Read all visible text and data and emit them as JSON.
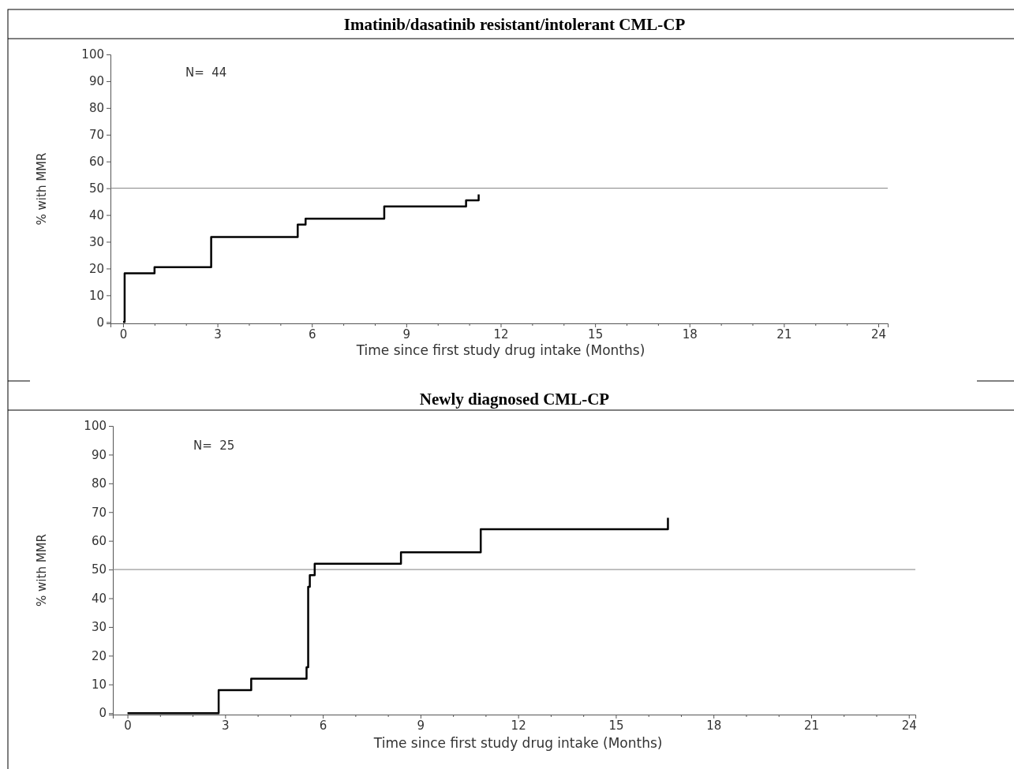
{
  "chart_data": [
    {
      "type": "step",
      "title": "Imatinib/dasatinib resistant/intolerant CML-CP",
      "xlabel": "Time since first study drug intake (Months)",
      "ylabel": "% with MMR",
      "annotations": [
        "N=  44"
      ],
      "series": [
        {
          "color": "#000000",
          "x": [
            0,
            0.05,
            1,
            2.8,
            5.55,
            5.8,
            8.3,
            10.9,
            11.3
          ],
          "values": [
            0,
            18.2,
            20.5,
            31.8,
            36.4,
            38.6,
            43.2,
            45.5,
            47.7
          ]
        }
      ],
      "xlim": [
        -0.4,
        24.3
      ],
      "ylim": [
        -0.5,
        100
      ],
      "xticks": [
        0,
        {
          "value": 1,
          "label": null
        },
        {
          "value": 2,
          "label": null
        },
        3,
        {
          "value": 4,
          "label": null
        },
        {
          "value": 5,
          "label": null
        },
        6,
        {
          "value": 7,
          "label": null
        },
        {
          "value": 8,
          "label": null
        },
        9,
        {
          "value": 10,
          "label": null
        },
        {
          "value": 11,
          "label": null
        },
        12,
        {
          "value": 13,
          "label": null
        },
        {
          "value": 14,
          "label": null
        },
        15,
        {
          "value": 16,
          "label": null
        },
        {
          "value": 17,
          "label": null
        },
        18,
        {
          "value": 19,
          "label": null
        },
        {
          "value": 20,
          "label": null
        },
        21,
        {
          "value": 22,
          "label": null
        },
        {
          "value": 23,
          "label": null
        },
        24
      ],
      "yticks": [
        0,
        10,
        20,
        30,
        40,
        50,
        60,
        70,
        80,
        90,
        100
      ],
      "ref_lines": [
        {
          "axis": "y",
          "value": 50,
          "color": "#808080"
        }
      ],
      "grid": false,
      "marker": "none",
      "line_style": "solid"
    },
    {
      "type": "step",
      "title": "Newly diagnosed CML-CP",
      "xlabel": "Time since first study drug intake (Months)",
      "ylabel": "% with MMR",
      "annotations": [
        "N=  25"
      ],
      "series": [
        {
          "color": "#000000",
          "x": [
            0,
            2.8,
            3.8,
            5.5,
            5.55,
            5.6,
            5.75,
            8.4,
            10.85,
            16.6
          ],
          "values": [
            0,
            8,
            12,
            16,
            44,
            48,
            52,
            56,
            64,
            68
          ]
        }
      ],
      "xlim": [
        -0.45,
        24.2
      ],
      "ylim": [
        -0.5,
        100
      ],
      "xticks": [
        0,
        {
          "value": 1,
          "label": null
        },
        {
          "value": 2,
          "label": null
        },
        3,
        {
          "value": 4,
          "label": null
        },
        {
          "value": 5,
          "label": null
        },
        6,
        {
          "value": 7,
          "label": null
        },
        {
          "value": 8,
          "label": null
        },
        9,
        {
          "value": 10,
          "label": null
        },
        {
          "value": 11,
          "label": null
        },
        12,
        {
          "value": 13,
          "label": null
        },
        {
          "value": 14,
          "label": null
        },
        15,
        {
          "value": 16,
          "label": null
        },
        {
          "value": 17,
          "label": null
        },
        18,
        {
          "value": 19,
          "label": null
        },
        {
          "value": 20,
          "label": null
        },
        21,
        {
          "value": 22,
          "label": null
        },
        {
          "value": 23,
          "label": null
        },
        24
      ],
      "yticks": [
        0,
        10,
        20,
        30,
        40,
        50,
        60,
        70,
        80,
        90,
        100
      ],
      "ref_lines": [
        {
          "axis": "y",
          "value": 50,
          "color": "#808080"
        }
      ],
      "grid": false,
      "marker": "none",
      "line_style": "solid"
    }
  ]
}
